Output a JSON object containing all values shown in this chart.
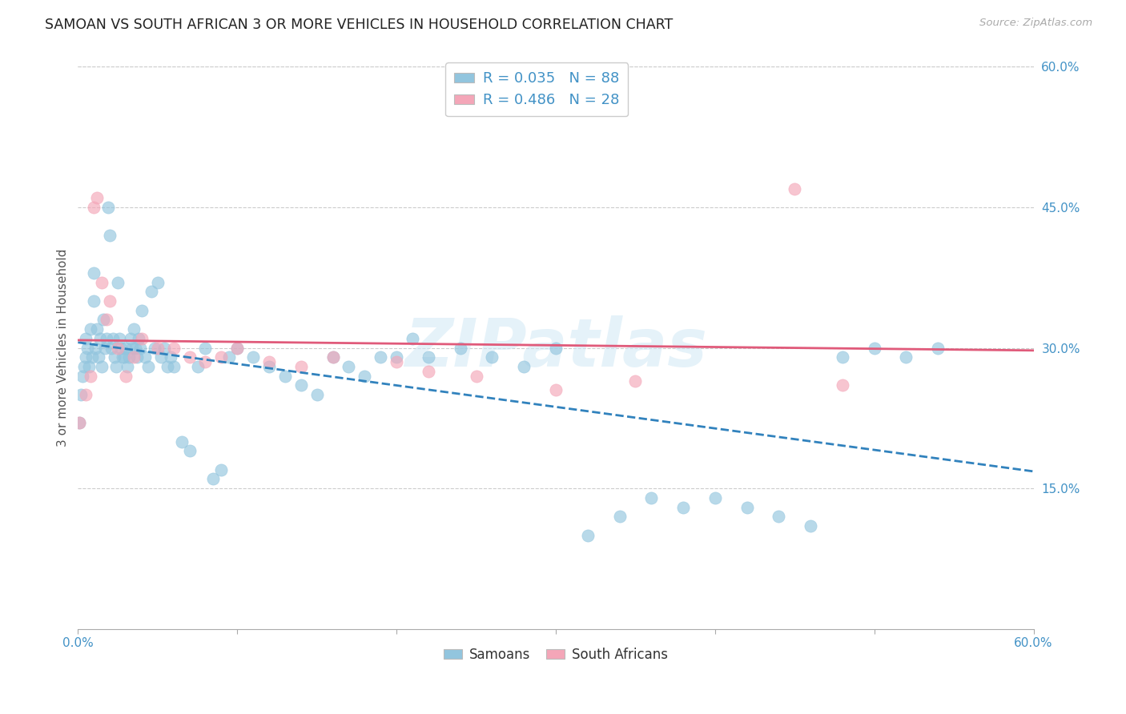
{
  "title": "SAMOAN VS SOUTH AFRICAN 3 OR MORE VEHICLES IN HOUSEHOLD CORRELATION CHART",
  "source": "Source: ZipAtlas.com",
  "ylabel": "3 or more Vehicles in Household",
  "xlim": [
    0.0,
    0.6
  ],
  "ylim": [
    0.0,
    0.6
  ],
  "ytick_labels": [
    "60.0%",
    "45.0%",
    "30.0%",
    "15.0%"
  ],
  "ytick_positions": [
    0.6,
    0.45,
    0.3,
    0.15
  ],
  "xtick_positions": [
    0.0,
    0.1,
    0.2,
    0.3,
    0.4,
    0.5,
    0.6
  ],
  "watermark": "ZIPatlas",
  "blue_color": "#92c5de",
  "pink_color": "#f4a6b8",
  "blue_line_color": "#3182bd",
  "pink_line_color": "#e05a7a",
  "tick_color": "#4292c6",
  "grid_color": "#cccccc",
  "R_blue": 0.035,
  "N_blue": 88,
  "R_pink": 0.486,
  "N_pink": 28,
  "samoans_x": [
    0.001,
    0.002,
    0.003,
    0.004,
    0.005,
    0.005,
    0.006,
    0.007,
    0.008,
    0.009,
    0.01,
    0.01,
    0.011,
    0.012,
    0.013,
    0.014,
    0.015,
    0.016,
    0.017,
    0.018,
    0.019,
    0.02,
    0.021,
    0.022,
    0.023,
    0.024,
    0.025,
    0.026,
    0.027,
    0.028,
    0.029,
    0.03,
    0.031,
    0.032,
    0.033,
    0.034,
    0.035,
    0.036,
    0.037,
    0.038,
    0.039,
    0.04,
    0.042,
    0.044,
    0.046,
    0.048,
    0.05,
    0.052,
    0.054,
    0.056,
    0.058,
    0.06,
    0.065,
    0.07,
    0.075,
    0.08,
    0.085,
    0.09,
    0.095,
    0.1,
    0.11,
    0.12,
    0.13,
    0.14,
    0.15,
    0.16,
    0.17,
    0.18,
    0.19,
    0.2,
    0.21,
    0.22,
    0.24,
    0.26,
    0.28,
    0.3,
    0.32,
    0.34,
    0.36,
    0.38,
    0.4,
    0.42,
    0.44,
    0.46,
    0.48,
    0.5,
    0.52,
    0.54
  ],
  "samoans_y": [
    0.22,
    0.25,
    0.27,
    0.28,
    0.29,
    0.31,
    0.3,
    0.28,
    0.32,
    0.29,
    0.35,
    0.38,
    0.3,
    0.32,
    0.29,
    0.31,
    0.28,
    0.33,
    0.3,
    0.31,
    0.45,
    0.42,
    0.3,
    0.31,
    0.29,
    0.28,
    0.37,
    0.31,
    0.3,
    0.29,
    0.29,
    0.3,
    0.28,
    0.29,
    0.31,
    0.3,
    0.32,
    0.3,
    0.29,
    0.31,
    0.3,
    0.34,
    0.29,
    0.28,
    0.36,
    0.3,
    0.37,
    0.29,
    0.3,
    0.28,
    0.29,
    0.28,
    0.2,
    0.19,
    0.28,
    0.3,
    0.16,
    0.17,
    0.29,
    0.3,
    0.29,
    0.28,
    0.27,
    0.26,
    0.25,
    0.29,
    0.28,
    0.27,
    0.29,
    0.29,
    0.31,
    0.29,
    0.3,
    0.29,
    0.28,
    0.3,
    0.1,
    0.12,
    0.14,
    0.13,
    0.14,
    0.13,
    0.12,
    0.11,
    0.29,
    0.3,
    0.29,
    0.3
  ],
  "south_african_x": [
    0.001,
    0.005,
    0.008,
    0.01,
    0.012,
    0.015,
    0.018,
    0.02,
    0.025,
    0.03,
    0.035,
    0.04,
    0.05,
    0.06,
    0.07,
    0.08,
    0.09,
    0.1,
    0.12,
    0.14,
    0.16,
    0.2,
    0.22,
    0.25,
    0.3,
    0.35,
    0.45,
    0.48
  ],
  "south_african_y": [
    0.22,
    0.25,
    0.27,
    0.45,
    0.46,
    0.37,
    0.33,
    0.35,
    0.3,
    0.27,
    0.29,
    0.31,
    0.3,
    0.3,
    0.29,
    0.285,
    0.29,
    0.3,
    0.285,
    0.28,
    0.29,
    0.285,
    0.275,
    0.27,
    0.255,
    0.265,
    0.47,
    0.26
  ],
  "legend_blue_label": "R = 0.035   N = 88",
  "legend_pink_label": "R = 0.486   N = 28",
  "samoans_legend": "Samoans",
  "south_african_legend": "South Africans",
  "background_color": "#ffffff"
}
